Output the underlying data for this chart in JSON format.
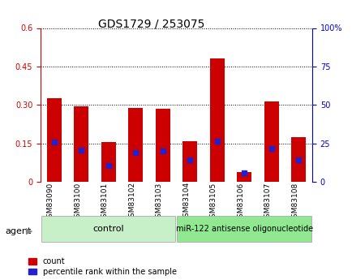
{
  "title": "GDS1729 / 253075",
  "samples": [
    "GSM83090",
    "GSM83100",
    "GSM83101",
    "GSM83102",
    "GSM83103",
    "GSM83104",
    "GSM83105",
    "GSM83106",
    "GSM83107",
    "GSM83108"
  ],
  "red_values": [
    0.325,
    0.295,
    0.155,
    0.29,
    0.285,
    0.16,
    0.48,
    0.04,
    0.315,
    0.175
  ],
  "blue_values": [
    0.155,
    0.125,
    0.065,
    0.115,
    0.12,
    0.085,
    0.16,
    0.035,
    0.13,
    0.085
  ],
  "ylim_left": [
    0,
    0.6
  ],
  "ylim_right": [
    0,
    100
  ],
  "yticks_left": [
    0,
    0.15,
    0.3,
    0.45,
    0.6
  ],
  "ytick_labels_left": [
    "0",
    "0.15",
    "0.30",
    "0.45",
    "0.6"
  ],
  "yticks_right": [
    0,
    25,
    50,
    75,
    100
  ],
  "ytick_labels_right": [
    "0",
    "25",
    "50",
    "75",
    "100%"
  ],
  "left_color": "#cc0000",
  "right_color": "#0000cc",
  "bar_color": "#cc0000",
  "blue_color": "#2222cc",
  "bar_width": 0.55,
  "control_samples": 5,
  "control_label": "control",
  "treatment_label": "miR-122 antisense oligonucleotide",
  "agent_label": "agent",
  "legend_count": "count",
  "legend_pct": "percentile rank within the sample",
  "bg_plot": "#ffffff",
  "bg_ctrl": "#c8f0c8",
  "bg_treat": "#90e890",
  "bg_xticklabels": "#c8c8c8",
  "title_fontsize": 10,
  "tick_fontsize": 7,
  "bar_label_fontsize": 6.5,
  "agent_fontsize": 8,
  "legend_fontsize": 7
}
